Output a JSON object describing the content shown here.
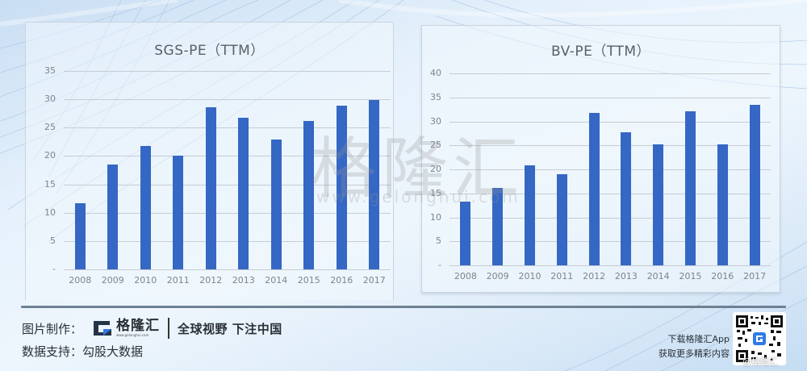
{
  "chart_data": [
    {
      "type": "bar",
      "title": "SGS-PE（TTM）",
      "categories": [
        "2008",
        "2009",
        "2010",
        "2011",
        "2012",
        "2013",
        "2014",
        "2015",
        "2016",
        "2017"
      ],
      "values": [
        11.7,
        18.5,
        21.8,
        20.1,
        28.6,
        26.7,
        22.9,
        26.2,
        28.9,
        29.9
      ],
      "xlabel": "",
      "ylabel": "",
      "ylim": [
        0,
        35
      ],
      "yticks": [
        "-",
        "5",
        "10",
        "15",
        "20",
        "25",
        "30",
        "35"
      ],
      "grid": true,
      "legend": "none",
      "bar_color": "#3567c4"
    },
    {
      "type": "bar",
      "title": "BV-PE（TTM）",
      "categories": [
        "2008",
        "2009",
        "2010",
        "2011",
        "2012",
        "2013",
        "2014",
        "2015",
        "2016",
        "2017"
      ],
      "values": [
        13.3,
        16.1,
        20.8,
        19.0,
        31.8,
        27.7,
        25.2,
        32.1,
        25.2,
        33.4
      ],
      "xlabel": "",
      "ylabel": "",
      "ylim": [
        0,
        40
      ],
      "yticks": [
        "-",
        "5",
        "10",
        "15",
        "20",
        "25",
        "30",
        "35",
        "40"
      ],
      "grid": true,
      "legend": "none",
      "bar_color": "#3567c4"
    }
  ],
  "watermark": {
    "brand_cn": "格隆汇",
    "url": "www.gelonghui.com"
  },
  "footer": {
    "made_by_label": "图片制作：",
    "logo_cn": "格隆汇",
    "logo_url": "www.gelonghui.com",
    "slogan": "全球视野 下注中国",
    "data_source_label": "数据支持：",
    "data_source": "勾股大数据",
    "promo_line1": "下载格隆汇App",
    "promo_line2": "获取更多精彩内容",
    "qr_credit": "@格隆汇"
  },
  "colors": {
    "bar": "#3567c4",
    "brand_blue": "#1f6fe0"
  }
}
